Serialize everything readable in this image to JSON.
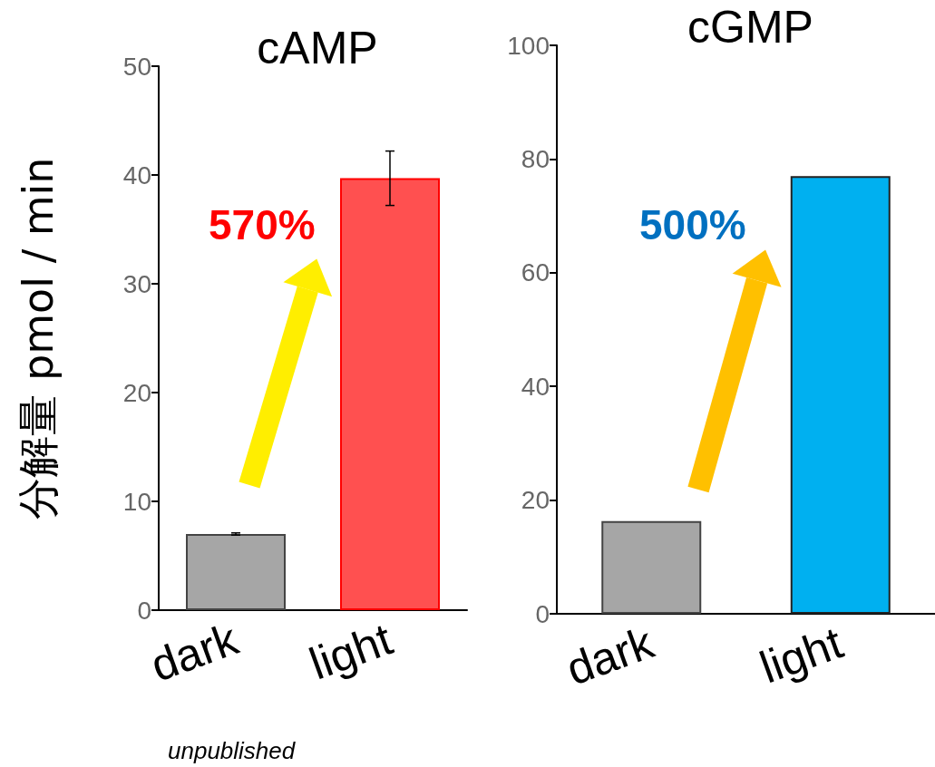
{
  "chart_data": [
    {
      "type": "bar",
      "title": "cAMP",
      "ylabel": "分解量 pmol / min",
      "categories": [
        "dark",
        "light"
      ],
      "values": [
        7.0,
        39.7
      ],
      "colors": [
        "#a6a6a6",
        "#ff5050"
      ],
      "errors": [
        0.1,
        2.5
      ],
      "ylim": [
        0,
        50
      ],
      "yticks": [
        0,
        10,
        20,
        30,
        40,
        50
      ],
      "grid": false,
      "annotations": [
        "570%",
        "unpublished"
      ]
    },
    {
      "type": "bar",
      "title": "cGMP",
      "categories": [
        "dark",
        "light"
      ],
      "values": [
        16.3,
        77.0
      ],
      "colors": [
        "#a6a6a6",
        "#00b0f0"
      ],
      "ylim": [
        0,
        100
      ],
      "yticks": [
        0,
        20,
        40,
        60,
        80,
        100
      ],
      "grid": false,
      "annotations": [
        "500%"
      ]
    }
  ]
}
